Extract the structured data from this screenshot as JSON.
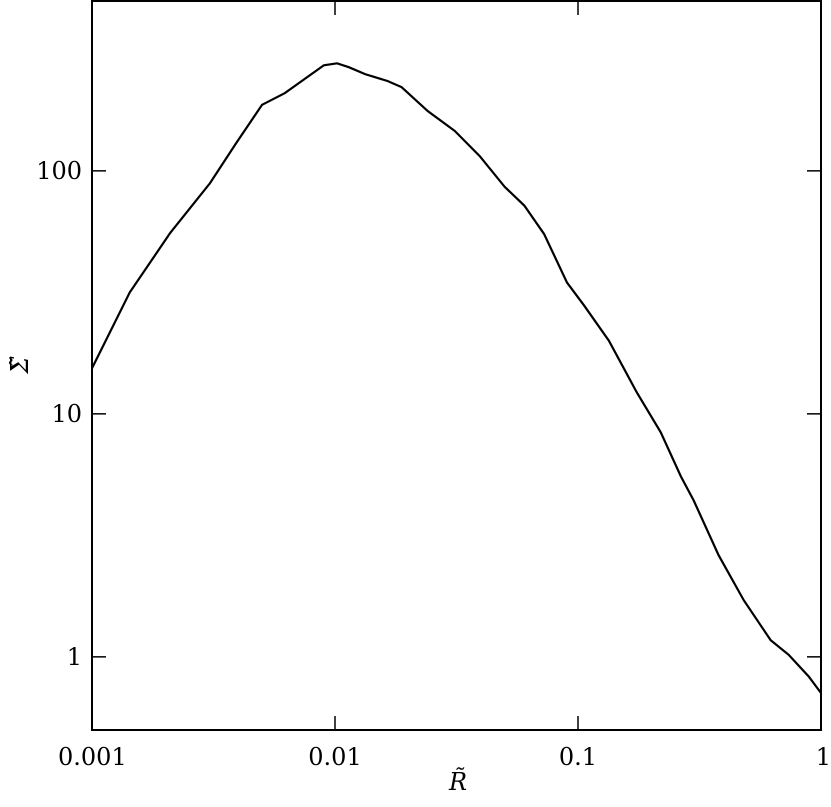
{
  "chart_data": {
    "type": "line",
    "xlabel": "R̃",
    "ylabel": "Σ̃",
    "x": [
      0.001,
      0.00143,
      0.0021,
      0.00306,
      0.00392,
      0.00501,
      0.00622,
      0.009,
      0.0102,
      0.0114,
      0.0133,
      0.0165,
      0.0188,
      0.0241,
      0.0311,
      0.0394,
      0.0499,
      0.0601,
      0.0725,
      0.0901,
      0.106,
      0.134,
      0.175,
      0.219,
      0.265,
      0.299,
      0.379,
      0.481,
      0.621,
      0.736,
      0.89,
      1.0
    ],
    "series": [
      {
        "color": "#000000",
        "values": [
          15.4,
          31.6,
          55.6,
          89,
          130,
          187,
          209,
          272,
          277,
          267,
          250,
          234,
          221,
          176,
          146,
          115,
          86,
          72,
          55,
          34.7,
          27.9,
          20,
          12.2,
          8.4,
          5.53,
          4.41,
          2.62,
          1.71,
          1.17,
          1.02,
          0.83,
          0.71
        ]
      }
    ],
    "xlim": [
      0.001,
      1
    ],
    "ylim": [
      0.5,
      500
    ],
    "log_x": true,
    "log_y": true,
    "xticks": [
      0.001,
      0.01,
      0.1,
      1
    ],
    "yticks": [
      1,
      10,
      100
    ]
  }
}
